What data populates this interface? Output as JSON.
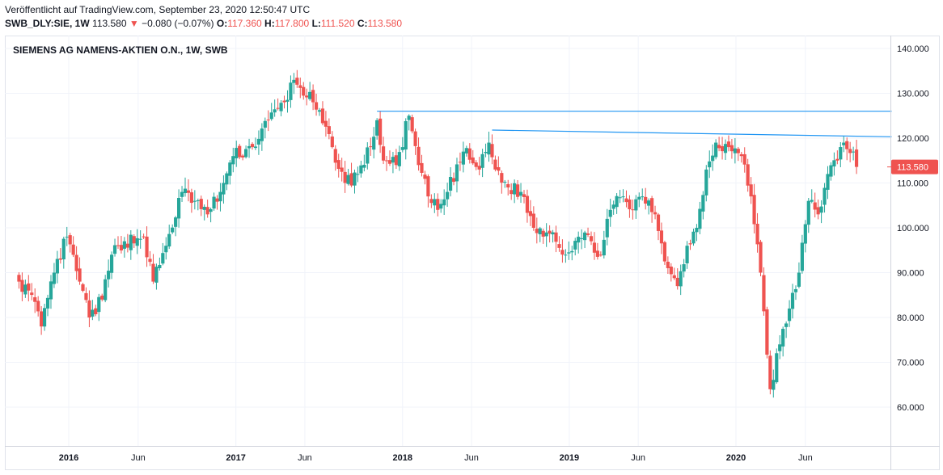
{
  "header": {
    "published": "Veröffentlicht auf TradingView.com, September 23, 2020 12:50:47 UTC",
    "symbol": "SWB_DLY:SIE, 1W",
    "last": "113.580",
    "change_arrow": "▼",
    "change": "−0.080 (−0.07%)",
    "o_label": "O:",
    "o_value": "117.360",
    "h_label": "H:",
    "h_value": "117.800",
    "l_label": "L:",
    "l_value": "111.520",
    "c_label": "C:",
    "c_value": "113.580"
  },
  "colors": {
    "up": "#26a69a",
    "down": "#ef5350",
    "trendline": "#2196f3",
    "grid": "#f0f3fa",
    "axis_text": "#131722"
  },
  "chart_data": {
    "type": "candlestick",
    "title": "SIEMENS AG NAMENS-AKTIEN O.N., 1W, SWB",
    "ylim": [
      50,
      145
    ],
    "yticks": [
      "140.000",
      "130.000",
      "120.000",
      "110.000",
      "100.000",
      "90.000",
      "80.000",
      "70.000",
      "60.000"
    ],
    "ytick_values": [
      140,
      130,
      120,
      110,
      100,
      90,
      80,
      70,
      60
    ],
    "xticks": [
      "2016",
      "Jun",
      "2017",
      "Jun",
      "2018",
      "Jun",
      "2019",
      "Jun",
      "2020",
      "Jun"
    ],
    "xtick_dates": [
      "2016-01-01",
      "2016-06-01",
      "2017-01-01",
      "2017-06-01",
      "2018-01-01",
      "2018-06-01",
      "2019-01-01",
      "2019-06-01",
      "2020-01-01",
      "2020-06-01"
    ],
    "x_start": "2015-09-14",
    "x_end": "2020-09-21",
    "grid": true,
    "last_price_label": "113.580",
    "last_price": 113.58,
    "anchors": [
      {
        "date": "2015-09-14",
        "close": 88
      },
      {
        "date": "2015-10-05",
        "close": 86
      },
      {
        "date": "2015-11-02",
        "close": 78
      },
      {
        "date": "2015-11-30",
        "close": 90
      },
      {
        "date": "2015-12-28",
        "close": 98
      },
      {
        "date": "2016-01-25",
        "close": 88
      },
      {
        "date": "2016-02-15",
        "close": 80
      },
      {
        "date": "2016-03-14",
        "close": 84
      },
      {
        "date": "2016-04-04",
        "close": 94
      },
      {
        "date": "2016-05-02",
        "close": 97
      },
      {
        "date": "2016-06-13",
        "close": 98
      },
      {
        "date": "2016-07-04",
        "close": 88
      },
      {
        "date": "2016-08-01",
        "close": 96
      },
      {
        "date": "2016-09-05",
        "close": 108
      },
      {
        "date": "2016-10-03",
        "close": 106
      },
      {
        "date": "2016-10-31",
        "close": 103
      },
      {
        "date": "2016-11-28",
        "close": 108
      },
      {
        "date": "2016-12-26",
        "close": 116
      },
      {
        "date": "2017-02-06",
        "close": 118
      },
      {
        "date": "2017-03-13",
        "close": 124
      },
      {
        "date": "2017-04-17",
        "close": 128
      },
      {
        "date": "2017-05-08",
        "close": 133
      },
      {
        "date": "2017-06-19",
        "close": 128
      },
      {
        "date": "2017-07-31",
        "close": 118
      },
      {
        "date": "2017-08-28",
        "close": 110
      },
      {
        "date": "2017-09-25",
        "close": 112
      },
      {
        "date": "2017-10-23",
        "close": 118
      },
      {
        "date": "2017-11-06",
        "close": 124
      },
      {
        "date": "2017-11-20",
        "close": 115
      },
      {
        "date": "2017-12-18",
        "close": 114
      },
      {
        "date": "2018-01-15",
        "close": 125
      },
      {
        "date": "2018-02-05",
        "close": 114
      },
      {
        "date": "2018-02-26",
        "close": 107
      },
      {
        "date": "2018-03-19",
        "close": 104
      },
      {
        "date": "2018-04-09",
        "close": 108
      },
      {
        "date": "2018-05-14",
        "close": 117
      },
      {
        "date": "2018-06-18",
        "close": 113
      },
      {
        "date": "2018-07-09",
        "close": 119
      },
      {
        "date": "2018-07-23",
        "close": 113
      },
      {
        "date": "2018-08-20",
        "close": 109
      },
      {
        "date": "2018-09-17",
        "close": 108
      },
      {
        "date": "2018-10-15",
        "close": 100
      },
      {
        "date": "2018-11-26",
        "close": 99
      },
      {
        "date": "2018-12-24",
        "close": 94
      },
      {
        "date": "2019-01-21",
        "close": 98
      },
      {
        "date": "2019-02-18",
        "close": 97
      },
      {
        "date": "2019-03-11",
        "close": 94
      },
      {
        "date": "2019-04-01",
        "close": 104
      },
      {
        "date": "2019-04-29",
        "close": 107
      },
      {
        "date": "2019-05-20",
        "close": 104
      },
      {
        "date": "2019-06-10",
        "close": 107
      },
      {
        "date": "2019-07-08",
        "close": 103
      },
      {
        "date": "2019-08-05",
        "close": 91
      },
      {
        "date": "2019-08-26",
        "close": 87
      },
      {
        "date": "2019-09-16",
        "close": 96
      },
      {
        "date": "2019-10-07",
        "close": 100
      },
      {
        "date": "2019-10-28",
        "close": 113
      },
      {
        "date": "2019-11-18",
        "close": 119
      },
      {
        "date": "2019-12-16",
        "close": 118
      },
      {
        "date": "2020-01-13",
        "close": 116
      },
      {
        "date": "2020-02-03",
        "close": 107
      },
      {
        "date": "2020-02-24",
        "close": 90
      },
      {
        "date": "2020-03-16",
        "close": 64
      },
      {
        "date": "2020-04-06",
        "close": 74
      },
      {
        "date": "2020-04-27",
        "close": 82
      },
      {
        "date": "2020-05-18",
        "close": 90
      },
      {
        "date": "2020-06-08",
        "close": 106
      },
      {
        "date": "2020-06-29",
        "close": 103
      },
      {
        "date": "2020-07-20",
        "close": 112
      },
      {
        "date": "2020-08-10",
        "close": 115
      },
      {
        "date": "2020-08-24",
        "close": 119
      },
      {
        "date": "2020-09-14",
        "close": 117
      },
      {
        "date": "2020-09-21",
        "close": 113.58
      }
    ],
    "trendlines": [
      {
        "start_date": "2017-11-06",
        "start_price": 126,
        "end_date": "2020-12-07",
        "end_price": 126
      },
      {
        "start_date": "2018-07-16",
        "start_price": 121.8,
        "end_date": "2020-12-07",
        "end_price": 120.3
      }
    ]
  }
}
